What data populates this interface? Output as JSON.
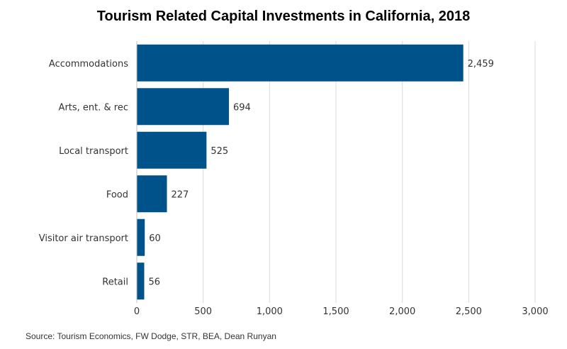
{
  "chart_data": {
    "type": "bar",
    "orientation": "horizontal",
    "title": "Tourism Related Capital Investments in California, 2018",
    "categories": [
      "Accommodations",
      "Arts, ent. & rec",
      "Local transport",
      "Food",
      "Visitor air transport",
      "Retail"
    ],
    "values": [
      2459,
      694,
      525,
      227,
      60,
      56
    ],
    "value_labels": [
      "2,459",
      "694",
      "525",
      "227",
      "60",
      "56"
    ],
    "xlim": [
      0,
      3000
    ],
    "xticks": [
      0,
      500,
      1000,
      1500,
      2000,
      2500,
      3000
    ],
    "xtick_labels": [
      "0",
      "500",
      "1,000",
      "1,500",
      "2,000",
      "2,500",
      "3,000"
    ],
    "xlabel": "",
    "ylabel": "",
    "grid": "vertical",
    "legend": "none",
    "bar_color": "#00538a",
    "grid_color": "#d9d9d9"
  },
  "source": "Source: Tourism Economics, FW Dodge, STR, BEA, Dean Runyan"
}
